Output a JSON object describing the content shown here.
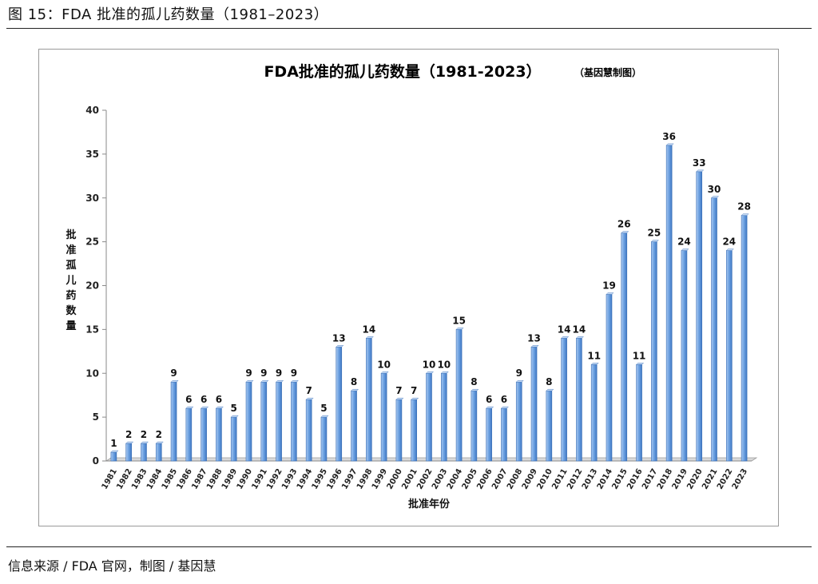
{
  "figure": {
    "caption": "图 15：FDA 批准的孤儿药数量（1981–2023）",
    "source": "信息来源 / FDA 官网，制图 / 基因慧"
  },
  "chart_data": {
    "type": "bar",
    "title": "FDA批准的孤儿药数量（1981-2023）",
    "title_note": "（基因慧制图）",
    "xlabel": "批准年份",
    "ylabel": "批准孤儿药数量",
    "ylim": [
      0,
      40
    ],
    "yticks": [
      "0",
      "5",
      "10",
      "15",
      "20",
      "25",
      "30",
      "35",
      "40"
    ],
    "grid": false,
    "legend": "none",
    "bar_color": "#5b93d6",
    "categories": [
      "1981",
      "1982",
      "1983",
      "1984",
      "1985",
      "1986",
      "1987",
      "1988",
      "1989",
      "1990",
      "1991",
      "1992",
      "1993",
      "1994",
      "1995",
      "1996",
      "1997",
      "1998",
      "1999",
      "2000",
      "2001",
      "2002",
      "2003",
      "2004",
      "2005",
      "2006",
      "2007",
      "2008",
      "2009",
      "2010",
      "2011",
      "2012",
      "2013",
      "2014",
      "2015",
      "2016",
      "2017",
      "2018",
      "2019",
      "2020",
      "2021",
      "2022",
      "2023"
    ],
    "values": [
      1,
      2,
      2,
      2,
      9,
      6,
      6,
      6,
      5,
      9,
      9,
      9,
      9,
      7,
      5,
      13,
      8,
      14,
      10,
      7,
      7,
      10,
      10,
      15,
      8,
      6,
      6,
      9,
      13,
      8,
      14,
      14,
      11,
      19,
      26,
      11,
      25,
      36,
      24,
      33,
      30,
      24,
      28
    ]
  }
}
